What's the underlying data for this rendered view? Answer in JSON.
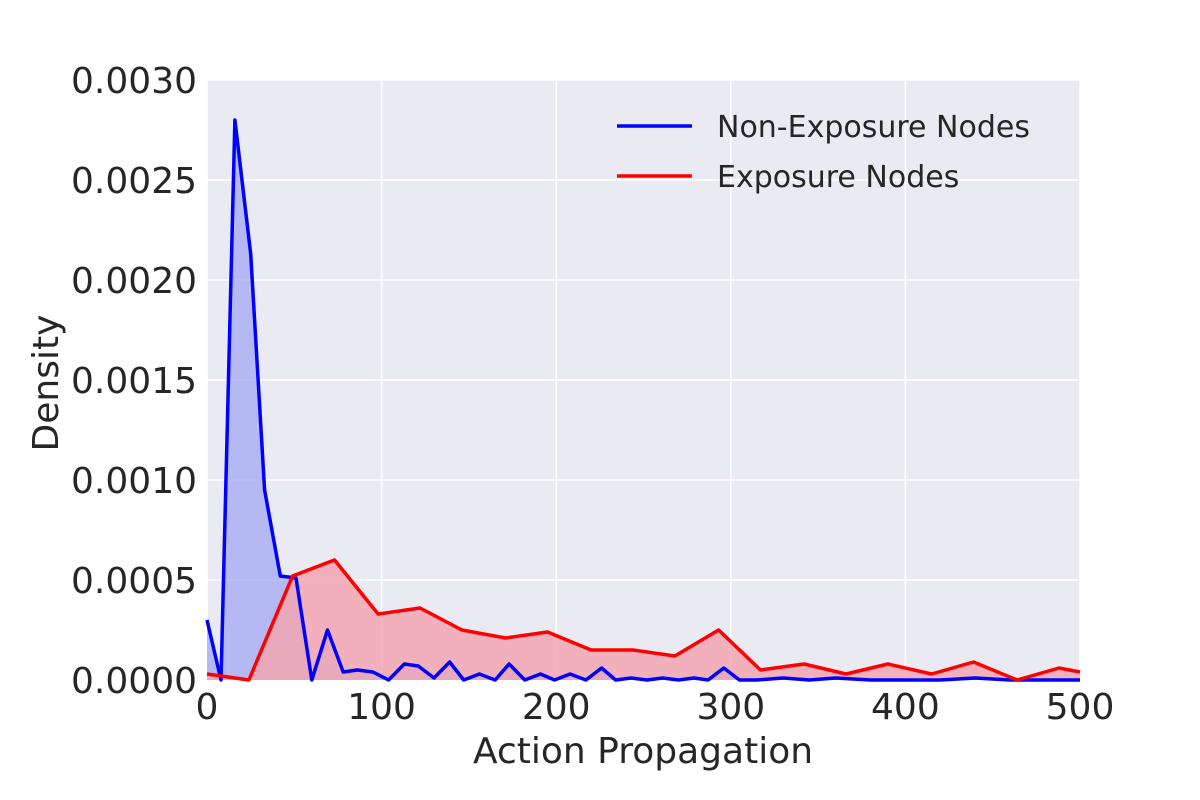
{
  "chart_data": {
    "type": "area",
    "title": "",
    "xlabel": "Action Propagation",
    "ylabel": "Density",
    "xlim": [
      0,
      500
    ],
    "ylim": [
      0,
      0.003
    ],
    "xticks": [
      "0",
      "100",
      "200",
      "300",
      "400",
      "500"
    ],
    "yticks": [
      "0.0000",
      "0.0005",
      "0.0010",
      "0.0015",
      "0.0020",
      "0.0025",
      "0.0030"
    ],
    "grid": true,
    "legend_position": "top-right",
    "colors": {
      "background": "#eaeaf2",
      "grid": "#ffffff",
      "non_exposure_line": "#0000ff",
      "non_exposure_fill": "#aab0f5",
      "exposure_line": "#ff0000",
      "exposure_fill": "#f2a6b2"
    },
    "series": [
      {
        "name": "Non-Exposure Nodes",
        "color": "#0000ff",
        "fill": "#aab0f5",
        "x": [
          0,
          8,
          16,
          25,
          33,
          42,
          51,
          60,
          69,
          78,
          86,
          95,
          104,
          113,
          121,
          130,
          139,
          147,
          156,
          165,
          173,
          182,
          191,
          199,
          208,
          217,
          226,
          234,
          243,
          252,
          261,
          270,
          279,
          287,
          296,
          305,
          315,
          330,
          345,
          360,
          380,
          400,
          420,
          440,
          460,
          480,
          500
        ],
        "y": [
          0.0003,
          0.0,
          0.0028,
          0.00213,
          0.00095,
          0.00052,
          0.00051,
          0.0,
          0.00025,
          4e-05,
          5e-05,
          4e-05,
          0.0,
          8e-05,
          7e-05,
          1e-05,
          9e-05,
          0.0,
          3e-05,
          0.0,
          8e-05,
          0.0,
          3e-05,
          0.0,
          3e-05,
          0.0,
          6e-05,
          0.0,
          1e-05,
          0.0,
          1e-05,
          0.0,
          1e-05,
          0.0,
          6e-05,
          0.0,
          0.0,
          1e-05,
          0.0,
          1e-05,
          0.0,
          0.0,
          0.0,
          1e-05,
          0.0,
          0.0,
          0.0
        ]
      },
      {
        "name": "Exposure Nodes",
        "color": "#ff0000",
        "fill": "#f2a6b2",
        "x": [
          0,
          24,
          49,
          73,
          98,
          122,
          146,
          171,
          195,
          220,
          244,
          268,
          293,
          317,
          342,
          366,
          390,
          415,
          439,
          464,
          488,
          500
        ],
        "y": [
          3e-05,
          0.0,
          0.00052,
          0.0006,
          0.00033,
          0.00036,
          0.00025,
          0.00021,
          0.00024,
          0.00015,
          0.00015,
          0.00012,
          0.00025,
          5e-05,
          8e-05,
          3e-05,
          8e-05,
          3e-05,
          9e-05,
          0.0,
          6e-05,
          4e-05
        ]
      }
    ]
  }
}
